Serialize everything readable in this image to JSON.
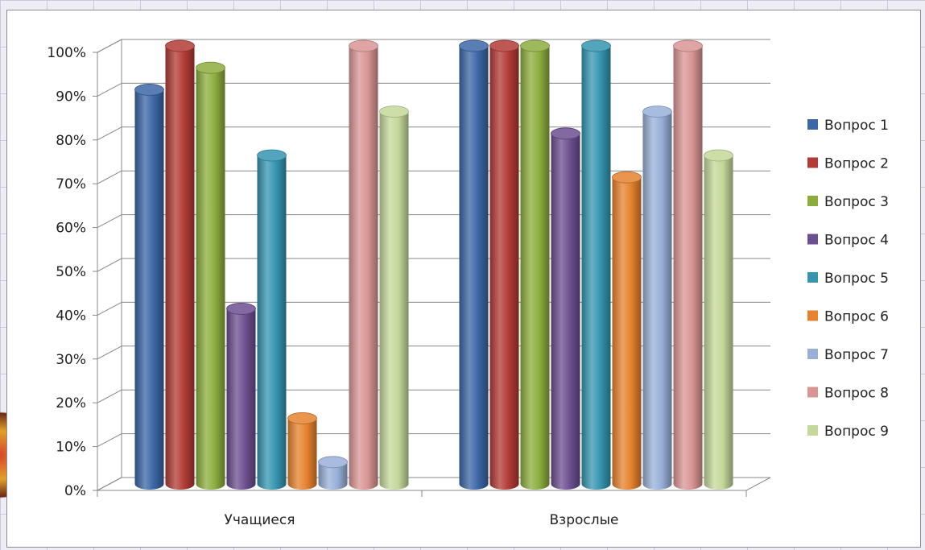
{
  "chart_data": {
    "type": "bar",
    "style": "3d-cylinder",
    "categories": [
      "Учащиеся",
      "Взрослые"
    ],
    "series": [
      {
        "name": "Вопрос 1",
        "color": "#3b67a6",
        "values": [
          90,
          100
        ]
      },
      {
        "name": "Вопрос 2",
        "color": "#b23b36",
        "values": [
          100,
          100
        ]
      },
      {
        "name": "Вопрос 3",
        "color": "#8cad3e",
        "values": [
          95,
          100
        ]
      },
      {
        "name": "Вопрос 4",
        "color": "#6c4f90",
        "values": [
          40,
          80
        ]
      },
      {
        "name": "Вопрос 5",
        "color": "#3595b0",
        "values": [
          75,
          100
        ]
      },
      {
        "name": "Вопрос 6",
        "color": "#e6822e",
        "values": [
          15,
          70
        ]
      },
      {
        "name": "Вопрос 7",
        "color": "#98b0d8",
        "values": [
          5,
          85
        ]
      },
      {
        "name": "Вопрос 8",
        "color": "#d99594",
        "values": [
          100,
          100
        ]
      },
      {
        "name": "Вопрос 9",
        "color": "#c4d89a",
        "values": [
          85,
          75
        ]
      }
    ],
    "yticks": [
      "0%",
      "10%",
      "20%",
      "30%",
      "40%",
      "50%",
      "60%",
      "70%",
      "80%",
      "90%",
      "100%"
    ],
    "ylim": [
      0,
      100
    ],
    "title": "",
    "xlabel": "",
    "ylabel": "",
    "grid": true,
    "legend_position": "right"
  }
}
